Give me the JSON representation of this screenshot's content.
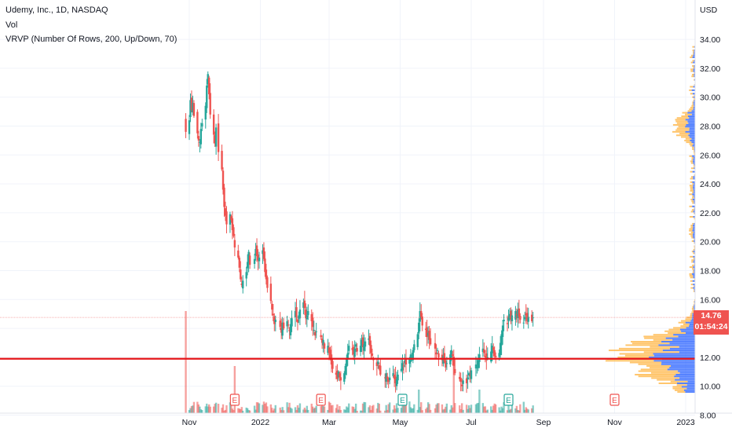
{
  "header": {
    "symbol": "Udemy, Inc., 1D, NASDAQ",
    "volume": "Vol",
    "vrvp": "VRVP (Number Of Rows, 200, Up/Down, 70)"
  },
  "price_badge": {
    "price": "14.76",
    "countdown": "01:54:24",
    "color": "#ef5350"
  },
  "colors": {
    "up": "#26a69a",
    "down": "#ef5350",
    "vrvp_up": "#2962ff",
    "vrvp_down": "#ffb13b",
    "support_line": "#e5161a",
    "earnings_up": "#26a69a",
    "earnings_down": "#ef5350"
  },
  "chart_data": {
    "type": "candlestick",
    "y_axis": {
      "unit": "USD",
      "ticks": [
        "8.00",
        "10.00",
        "12.00",
        "14.00",
        "16.00",
        "18.00",
        "20.00",
        "22.00",
        "24.00",
        "26.00",
        "28.00",
        "30.00",
        "32.00",
        "34.00"
      ],
      "range": [
        7.0,
        34.8
      ]
    },
    "x_axis": {
      "labels": [
        "Nov",
        "2022",
        "Mar",
        "May",
        "Jul",
        "Sep",
        "Nov",
        "2023"
      ],
      "label_dates": [
        "2021-11-01",
        "2022-01-01",
        "2022-03-01",
        "2022-05-01",
        "2022-07-01",
        "2022-09-01",
        "2022-11-01",
        "2023-01-01"
      ]
    },
    "horizontal_line": {
      "price": 11.9,
      "label": ""
    },
    "last_price": 14.76,
    "series_close": [
      [
        "2021-10-29",
        27.6
      ],
      [
        "2021-11-01",
        28.4
      ],
      [
        "2021-11-02",
        29.8
      ],
      [
        "2021-11-03",
        29.1
      ],
      [
        "2021-11-04",
        29.6
      ],
      [
        "2021-11-05",
        28.7
      ],
      [
        "2021-11-08",
        27.5
      ],
      [
        "2021-11-09",
        27.0
      ],
      [
        "2021-11-10",
        26.9
      ],
      [
        "2021-11-11",
        27.8
      ],
      [
        "2021-11-12",
        28.2
      ],
      [
        "2021-11-15",
        29.4
      ],
      [
        "2021-11-16",
        30.8
      ],
      [
        "2021-11-17",
        31.6
      ],
      [
        "2021-11-18",
        30.2
      ],
      [
        "2021-11-19",
        28.8
      ],
      [
        "2021-11-22",
        27.4
      ],
      [
        "2021-11-23",
        26.8
      ],
      [
        "2021-11-24",
        27.9
      ],
      [
        "2021-11-26",
        26.2
      ],
      [
        "2021-11-29",
        25.0
      ],
      [
        "2021-11-30",
        23.6
      ],
      [
        "2021-12-01",
        22.4
      ],
      [
        "2021-12-02",
        21.8
      ],
      [
        "2021-12-03",
        21.2
      ],
      [
        "2021-12-06",
        21.9
      ],
      [
        "2021-12-07",
        21.5
      ],
      [
        "2021-12-08",
        20.8
      ],
      [
        "2021-12-09",
        20.4
      ],
      [
        "2021-12-10",
        19.6
      ],
      [
        "2021-12-13",
        18.9
      ],
      [
        "2021-12-14",
        18.2
      ],
      [
        "2021-12-15",
        17.4
      ],
      [
        "2021-12-16",
        17.0
      ],
      [
        "2021-12-17",
        17.3
      ],
      [
        "2021-12-20",
        17.9
      ],
      [
        "2021-12-21",
        18.6
      ],
      [
        "2021-12-22",
        19.3
      ],
      [
        "2021-12-23",
        18.4
      ],
      [
        "2021-12-27",
        18.8
      ],
      [
        "2021-12-28",
        19.5
      ],
      [
        "2021-12-29",
        19.0
      ],
      [
        "2021-12-30",
        18.7
      ],
      [
        "2021-12-31",
        18.9
      ],
      [
        "2022-01-03",
        19.4
      ],
      [
        "2022-01-04",
        18.8
      ],
      [
        "2022-01-05",
        17.9
      ],
      [
        "2022-01-06",
        17.4
      ],
      [
        "2022-01-07",
        16.8
      ],
      [
        "2022-01-10",
        15.9
      ],
      [
        "2022-01-11",
        15.3
      ],
      [
        "2022-01-12",
        14.9
      ],
      [
        "2022-01-13",
        14.3
      ],
      [
        "2022-01-14",
        14.6
      ],
      [
        "2022-01-18",
        14.1
      ],
      [
        "2022-01-19",
        13.7
      ],
      [
        "2022-01-20",
        14.4
      ],
      [
        "2022-01-21",
        14.0
      ],
      [
        "2022-01-24",
        14.5
      ],
      [
        "2022-01-25",
        14.2
      ],
      [
        "2022-01-26",
        13.8
      ],
      [
        "2022-01-27",
        14.3
      ],
      [
        "2022-01-28",
        14.7
      ],
      [
        "2022-01-31",
        15.2
      ],
      [
        "2022-02-01",
        14.8
      ],
      [
        "2022-02-02",
        14.4
      ],
      [
        "2022-02-03",
        14.9
      ],
      [
        "2022-02-04",
        15.3
      ],
      [
        "2022-02-07",
        15.8
      ],
      [
        "2022-02-08",
        15.4
      ],
      [
        "2022-02-09",
        14.7
      ],
      [
        "2022-02-10",
        14.9
      ],
      [
        "2022-02-11",
        15.2
      ],
      [
        "2022-02-14",
        14.5
      ],
      [
        "2022-02-15",
        14.1
      ],
      [
        "2022-02-16",
        13.9
      ],
      [
        "2022-02-17",
        13.5
      ],
      [
        "2022-02-18",
        13.8
      ],
      [
        "2022-02-22",
        13.4
      ],
      [
        "2022-02-23",
        13.0
      ],
      [
        "2022-02-24",
        13.2
      ],
      [
        "2022-02-25",
        12.6
      ],
      [
        "2022-02-28",
        12.8
      ],
      [
        "2022-03-01",
        12.3
      ],
      [
        "2022-03-02",
        11.9
      ],
      [
        "2022-03-03",
        11.5
      ],
      [
        "2022-03-04",
        11.2
      ],
      [
        "2022-03-07",
        10.8
      ],
      [
        "2022-03-08",
        10.5
      ],
      [
        "2022-03-09",
        11.0
      ],
      [
        "2022-03-10",
        10.6
      ],
      [
        "2022-03-11",
        10.4
      ],
      [
        "2022-03-14",
        10.9
      ],
      [
        "2022-03-15",
        11.4
      ],
      [
        "2022-03-16",
        11.9
      ],
      [
        "2022-03-17",
        12.3
      ],
      [
        "2022-03-18",
        12.8
      ],
      [
        "2022-03-21",
        12.5
      ],
      [
        "2022-03-22",
        12.2
      ],
      [
        "2022-03-23",
        12.6
      ],
      [
        "2022-03-24",
        12.9
      ],
      [
        "2022-03-25",
        12.4
      ],
      [
        "2022-03-28",
        12.8
      ],
      [
        "2022-03-29",
        13.2
      ],
      [
        "2022-03-30",
        12.7
      ],
      [
        "2022-03-31",
        12.9
      ],
      [
        "2022-04-01",
        13.1
      ],
      [
        "2022-04-04",
        13.3
      ],
      [
        "2022-04-05",
        12.8
      ],
      [
        "2022-04-06",
        12.3
      ],
      [
        "2022-04-07",
        12.1
      ],
      [
        "2022-04-08",
        11.8
      ],
      [
        "2022-04-11",
        11.4
      ],
      [
        "2022-04-12",
        11.7
      ],
      [
        "2022-04-13",
        11.2
      ],
      [
        "2022-04-14",
        10.8
      ],
      [
        "2022-04-18",
        10.6
      ],
      [
        "2022-04-19",
        10.9
      ],
      [
        "2022-04-20",
        10.5
      ],
      [
        "2022-04-21",
        10.3
      ],
      [
        "2022-04-22",
        10.6
      ],
      [
        "2022-04-25",
        10.9
      ],
      [
        "2022-04-26",
        10.5
      ],
      [
        "2022-04-27",
        10.2
      ],
      [
        "2022-04-28",
        10.5
      ],
      [
        "2022-04-29",
        10.8
      ],
      [
        "2022-05-02",
        11.2
      ],
      [
        "2022-05-03",
        11.6
      ],
      [
        "2022-05-04",
        11.4
      ],
      [
        "2022-05-05",
        11.8
      ],
      [
        "2022-05-06",
        11.5
      ],
      [
        "2022-05-09",
        11.9
      ],
      [
        "2022-05-10",
        12.2
      ],
      [
        "2022-05-11",
        12.0
      ],
      [
        "2022-05-12",
        12.5
      ],
      [
        "2022-05-13",
        12.9
      ],
      [
        "2022-05-16",
        13.6
      ],
      [
        "2022-05-17",
        14.4
      ],
      [
        "2022-05-18",
        15.2
      ],
      [
        "2022-05-19",
        14.8
      ],
      [
        "2022-05-20",
        14.2
      ],
      [
        "2022-05-23",
        13.9
      ],
      [
        "2022-05-24",
        13.4
      ],
      [
        "2022-05-25",
        13.7
      ],
      [
        "2022-05-26",
        13.2
      ],
      [
        "2022-05-27",
        12.9
      ],
      [
        "2022-05-31",
        12.6
      ],
      [
        "2022-06-01",
        12.2
      ],
      [
        "2022-06-02",
        12.5
      ],
      [
        "2022-06-03",
        12.0
      ],
      [
        "2022-06-06",
        11.8
      ],
      [
        "2022-06-07",
        12.1
      ],
      [
        "2022-06-08",
        11.7
      ],
      [
        "2022-06-09",
        11.3
      ],
      [
        "2022-06-10",
        11.6
      ],
      [
        "2022-06-13",
        12.2
      ],
      [
        "2022-06-14",
        12.5
      ],
      [
        "2022-06-15",
        12.1
      ],
      [
        "2022-06-16",
        11.4
      ],
      [
        "2022-06-17",
        10.9
      ],
      [
        "2022-06-21",
        10.5
      ],
      [
        "2022-06-22",
        10.3
      ],
      [
        "2022-06-23",
        10.0
      ],
      [
        "2022-06-24",
        10.4
      ],
      [
        "2022-06-27",
        10.2
      ],
      [
        "2022-06-28",
        10.6
      ],
      [
        "2022-06-29",
        10.9
      ],
      [
        "2022-06-30",
        10.7
      ],
      [
        "2022-07-01",
        11.1
      ],
      [
        "2022-07-05",
        11.5
      ],
      [
        "2022-07-06",
        11.3
      ],
      [
        "2022-07-07",
        11.8
      ],
      [
        "2022-07-08",
        12.2
      ],
      [
        "2022-07-11",
        12.6
      ],
      [
        "2022-07-12",
        12.3
      ],
      [
        "2022-07-13",
        12.0
      ],
      [
        "2022-07-14",
        11.8
      ],
      [
        "2022-07-15",
        12.0
      ],
      [
        "2022-07-18",
        12.4
      ],
      [
        "2022-07-19",
        12.8
      ],
      [
        "2022-07-20",
        12.5
      ],
      [
        "2022-07-21",
        12.1
      ],
      [
        "2022-07-22",
        12.0
      ],
      [
        "2022-07-25",
        12.3
      ],
      [
        "2022-07-26",
        13.0
      ],
      [
        "2022-07-27",
        13.6
      ],
      [
        "2022-07-28",
        14.2
      ],
      [
        "2022-07-29",
        14.6
      ],
      [
        "2022-08-01",
        14.3
      ],
      [
        "2022-08-02",
        14.8
      ],
      [
        "2022-08-03",
        15.0
      ],
      [
        "2022-08-04",
        14.6
      ],
      [
        "2022-08-05",
        14.9
      ],
      [
        "2022-08-08",
        15.2
      ],
      [
        "2022-08-09",
        14.9
      ],
      [
        "2022-08-10",
        15.3
      ],
      [
        "2022-08-11",
        14.8
      ],
      [
        "2022-08-12",
        14.6
      ],
      [
        "2022-08-15",
        14.4
      ],
      [
        "2022-08-16",
        14.8
      ],
      [
        "2022-08-17",
        14.9
      ],
      [
        "2022-08-18",
        14.5
      ],
      [
        "2022-08-19",
        14.8
      ],
      [
        "2022-08-22",
        14.5
      ],
      [
        "2022-08-23",
        14.76
      ]
    ],
    "volume": {
      "bars": 205,
      "ipo_day_spike": true
    },
    "earnings_markers": [
      {
        "date": "2021-12-10",
        "label": "E",
        "result": "down"
      },
      {
        "date": "2022-02-22",
        "label": "E",
        "result": "down"
      },
      {
        "date": "2022-05-03",
        "label": "E",
        "result": "up"
      },
      {
        "date": "2022-08-02",
        "label": "E",
        "result": "up"
      },
      {
        "date": "2022-11-01",
        "label": "E",
        "result": "upcoming"
      }
    ],
    "volume_profile": {
      "rows": 200,
      "value_area_pct": 70,
      "poc_price": 11.9
    }
  }
}
